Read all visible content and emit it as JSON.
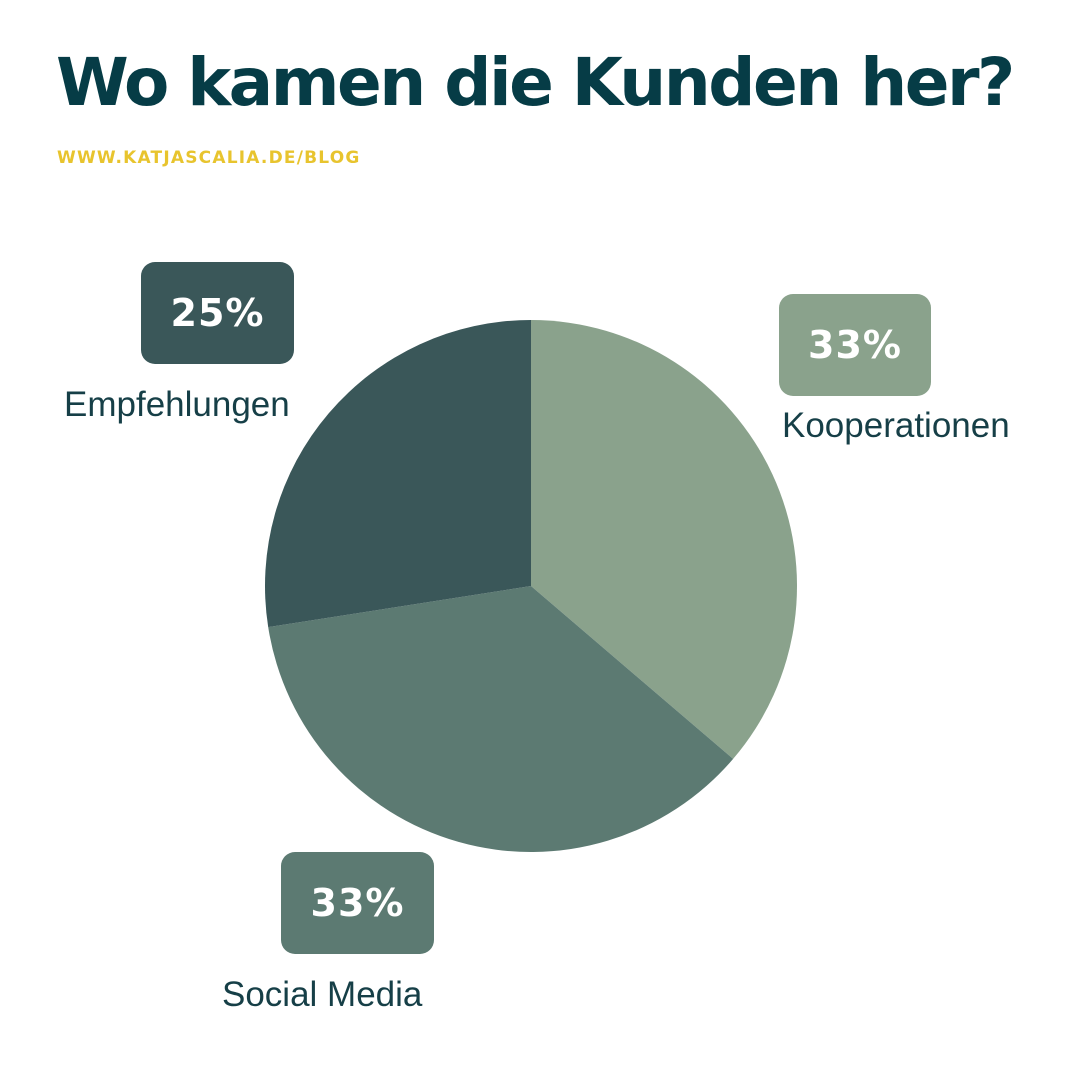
{
  "header": {
    "title": "Wo kamen die Kunden her?",
    "subtitle": "WWW.KATJASCALIA.DE/BLOG"
  },
  "colors": {
    "title": "#063c46",
    "subtitle": "#e8c42e",
    "label_text": "#163f47"
  },
  "chart_data": {
    "type": "pie",
    "title": "Wo kamen die Kunden her?",
    "legend": "none",
    "slices": [
      {
        "label": "Kooperationen",
        "value": 33,
        "display": "33%",
        "color": "#8aa28c"
      },
      {
        "label": "Social Media",
        "value": 33,
        "display": "33%",
        "color": "#5c7a72"
      },
      {
        "label": "Empfehlungen",
        "value": 25,
        "display": "25%",
        "color": "#3a5759"
      }
    ]
  }
}
